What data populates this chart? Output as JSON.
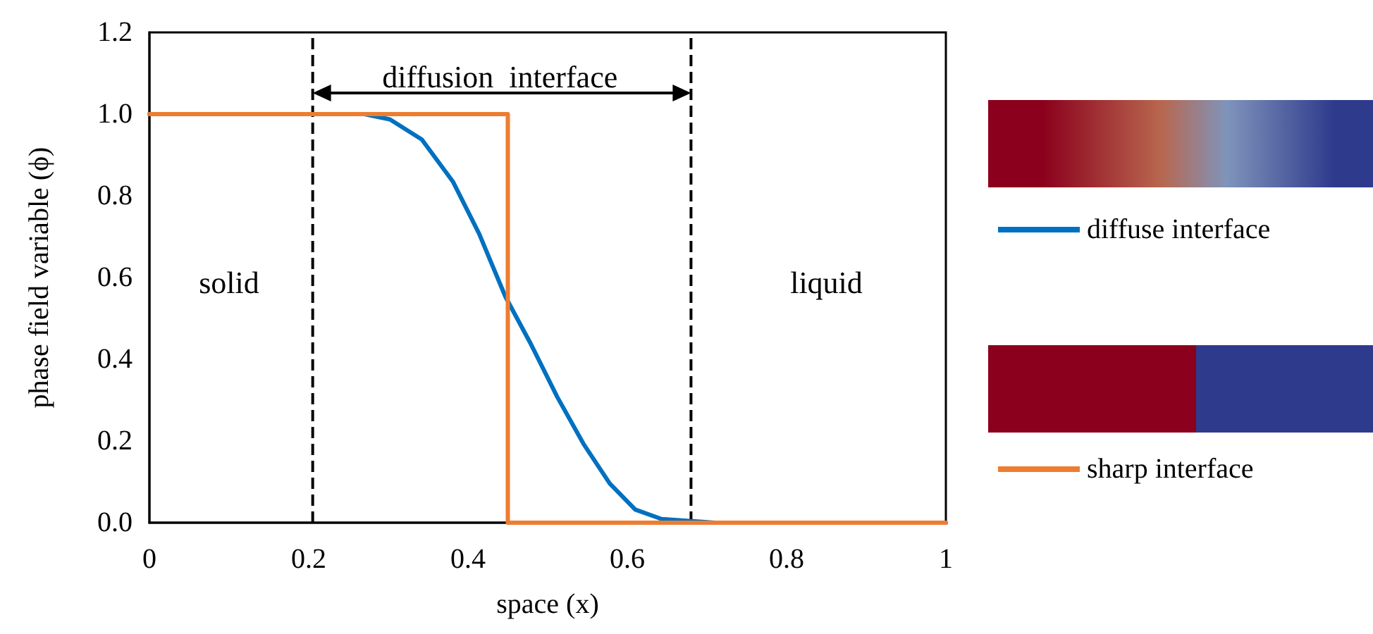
{
  "chart_data": {
    "type": "line",
    "xlabel": "space (x)",
    "ylabel": "phase field variable (ϕ)",
    "xlim": [
      0,
      1
    ],
    "xticks": [
      0,
      0.2,
      0.4,
      0.6,
      0.8,
      1
    ],
    "ylim": [
      0,
      1.2
    ],
    "yticks": [
      {
        "value": 0,
        "label": "0.0"
      },
      {
        "value": 0.2,
        "label": "0.2"
      },
      {
        "value": 0.4,
        "label": "0.4"
      },
      {
        "value": 0.6,
        "label": "0.6"
      },
      {
        "value": 0.8,
        "label": "0.8"
      },
      {
        "value": 1,
        "label": "1.0"
      },
      {
        "value": 1.2,
        "label": "1.2"
      }
    ],
    "series": [
      {
        "name": "diffuse interface",
        "color": "#0070c0",
        "x": [
          0,
          0.27,
          0.302,
          0.342,
          0.381,
          0.414,
          0.447,
          0.479,
          0.512,
          0.545,
          0.578,
          0.61,
          0.643,
          0.71,
          1
        ],
        "values": [
          1,
          1,
          0.987,
          0.938,
          0.835,
          0.707,
          0.553,
          0.437,
          0.308,
          0.193,
          0.096,
          0.032,
          0.009,
          0,
          0
        ]
      },
      {
        "name": "sharp interface",
        "color": "#ed7d31",
        "x": [
          0,
          0.45,
          0.45,
          1
        ],
        "values": [
          1,
          1,
          0,
          0
        ]
      }
    ],
    "ref_lines": [
      {
        "axis": "x",
        "value": 0.205,
        "color": "#000000",
        "line_style": "dashed"
      },
      {
        "axis": "x",
        "value": 0.68,
        "color": "#000000",
        "line_style": "dashed"
      }
    ],
    "annotations": [
      "diffusion  interface",
      "solid",
      "liquid"
    ],
    "legend": "right",
    "grid": false,
    "marker": "none",
    "line_style": "solid"
  }
}
